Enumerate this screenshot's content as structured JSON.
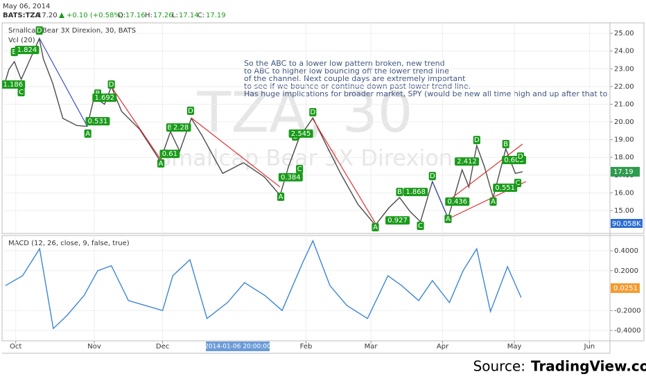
{
  "header": {
    "date": "May 06, 2014",
    "symbol": "BATS:TZA",
    "last": "17.20",
    "change": "+0.10 (+0.58%)",
    "ohlc": [
      {
        "label": "O:",
        "value": "17.16"
      },
      {
        "label": "H:",
        "value": "17.26"
      },
      {
        "label": "L:",
        "value": "17.14"
      },
      {
        "label": "C:",
        "value": "17.19"
      }
    ]
  },
  "chart_data": [
    {
      "type": "line",
      "title": "Smallcap Bear 3X Direxion, 30, BATS",
      "subtitle": "Vol (20)",
      "watermark": "TZA, 30",
      "watermark_name": "Smallcap Bear 3X Direxion",
      "x": [
        -3.5,
        -2,
        -0.4,
        1.6,
        4.7,
        6.9,
        8.1,
        10.8,
        13.8,
        17.9,
        20.9,
        23,
        26,
        28,
        31,
        36.2,
        42.3,
        45.3,
        48,
        51.4,
        54.5,
        60.6,
        66.7,
        72.8,
        77.4,
        79.9,
        82.9,
        87,
        91,
        95.1,
        100.2,
        105.3,
        109.3,
        112.4,
        115.4,
        118.5,
        122,
        126.6,
        130.7,
        132.7,
        135,
        137.2,
        139.8,
        143.5,
        146.3,
        148.4
      ],
      "values": [
        22.0,
        22.97,
        23.4,
        22.4,
        23.75,
        24.7,
        23.55,
        22.2,
        20.2,
        19.8,
        19.75,
        21.4,
        21.0,
        22.0,
        20.6,
        19.6,
        17.8,
        19.45,
        18.35,
        20.2,
        19.25,
        17.1,
        17.7,
        16.9,
        15.86,
        17.5,
        19.06,
        20.23,
        18.67,
        17.1,
        15.35,
        14.18,
        15.16,
        15.74,
        14.96,
        14.37,
        16.64,
        14.57,
        17.3,
        16.33,
        18.67,
        17.5,
        15.74,
        18.48,
        17.1,
        17.19
      ],
      "color": "#4a4a4a",
      "xlim": [
        -4,
        174
      ],
      "ylim": [
        13.71,
        25.59
      ],
      "yticks": [
        {
          "value": 15,
          "label": "15.00"
        },
        {
          "value": 16,
          "label": "16.00"
        },
        {
          "value": 17,
          "label": "17.00"
        },
        {
          "value": 18,
          "label": "18.00"
        },
        {
          "value": 19,
          "label": "19.00"
        },
        {
          "value": 20,
          "label": "20.00"
        },
        {
          "value": 21,
          "label": "21.00"
        },
        {
          "value": 22,
          "label": "22.00"
        },
        {
          "value": 23,
          "label": "23.00"
        },
        {
          "value": 24,
          "label": "24.00"
        },
        {
          "value": 25,
          "label": "25.00"
        }
      ],
      "last_price": 17.19,
      "volume_label": "90.058K",
      "grid": true,
      "note": [
        "So the ABC to a lower low pattern  broken, new trend",
        "to ABC to higher low bouncing off the lower trend line",
        "of the channel.  Next couple days are extremely important",
        "to see if we bounce or continue down past lower trend line.",
        "Has huge implications for broader market, SPY (would be new all time high and up after that to wh"
      ],
      "trend_lines": [
        {
          "x": [
            6.9,
            20.9
          ],
          "y": [
            24.73,
            19.77
          ],
          "color": "#3b4fc4"
        },
        {
          "x": [
            28.0,
            42.7
          ],
          "y": [
            21.99,
            17.81
          ],
          "color": "#e03030"
        },
        {
          "x": [
            51.4,
            77.4
          ],
          "y": [
            20.23,
            16.33
          ],
          "color": "#e03030"
        },
        {
          "x": [
            87.0,
            105.3
          ],
          "y": [
            20.16,
            14.3
          ],
          "color": "#e03030"
        },
        {
          "x": [
            122.0,
            126.6
          ],
          "y": [
            16.64,
            14.57
          ],
          "color": "#3b4fc4"
        },
        {
          "x": [
            126.6,
            148.4
          ],
          "y": [
            15.55,
            18.75
          ],
          "color": "#e03030"
        },
        {
          "x": [
            126.6,
            149.4
          ],
          "y": [
            14.53,
            16.64
          ],
          "color": "#e03030"
        }
      ],
      "pattern_color": "#1a9b1a",
      "pattern_labels": [
        {
          "text": "D",
          "x": 6.9,
          "y": 25.16
        },
        {
          "text": "B",
          "x": -0.4,
          "y": 23.95
        },
        {
          "text": "1.824",
          "x": 3.3,
          "y": 24.06
        },
        {
          "text": "1.186",
          "x": -0.8,
          "y": 22.11
        },
        {
          "text": "C",
          "x": 1.6,
          "y": 21.68
        },
        {
          "text": "B",
          "x": 24.0,
          "y": 21.6
        },
        {
          "text": "1.692",
          "x": 26.0,
          "y": 21.37
        },
        {
          "text": "D",
          "x": 28.0,
          "y": 22.11
        },
        {
          "text": "0.531",
          "x": 24.0,
          "y": 20.04
        },
        {
          "text": "A",
          "x": 21.1,
          "y": 19.34
        },
        {
          "text": "B",
          "x": 45.1,
          "y": 19.69
        },
        {
          "text": "2.28",
          "x": 48.4,
          "y": 19.69
        },
        {
          "text": "0.61",
          "x": 45.1,
          "y": 18.2
        },
        {
          "text": "A",
          "x": 42.5,
          "y": 17.66
        },
        {
          "text": "D",
          "x": 51.2,
          "y": 20.63
        },
        {
          "text": "B",
          "x": 81.9,
          "y": 19.18
        },
        {
          "text": "2.545",
          "x": 83.5,
          "y": 19.34
        },
        {
          "text": "C",
          "x": 83.1,
          "y": 17.34
        },
        {
          "text": "0.384",
          "x": 80.5,
          "y": 16.88
        },
        {
          "text": "D",
          "x": 87.0,
          "y": 20.55
        },
        {
          "text": "A",
          "x": 77.6,
          "y": 15.78
        },
        {
          "text": "A",
          "x": 105.3,
          "y": 14.06
        },
        {
          "text": "0.927",
          "x": 111.8,
          "y": 14.45
        },
        {
          "text": "C",
          "x": 118.5,
          "y": 14.14
        },
        {
          "text": "B",
          "x": 112.4,
          "y": 16.05
        },
        {
          "text": "1.868",
          "x": 117.1,
          "y": 16.05
        },
        {
          "text": "D",
          "x": 122.0,
          "y": 16.95
        },
        {
          "text": "0.436",
          "x": 129.3,
          "y": 15.51
        },
        {
          "text": "A",
          "x": 126.6,
          "y": 14.53
        },
        {
          "text": "2.412",
          "x": 132.1,
          "y": 17.77
        },
        {
          "text": "D",
          "x": 135.0,
          "y": 18.98
        },
        {
          "text": "B",
          "x": 143.5,
          "y": 18.75
        },
        {
          "text": "0.605",
          "x": 145.9,
          "y": 17.85
        },
        {
          "text": "D",
          "x": 147.8,
          "y": 18.05
        },
        {
          "text": "C",
          "x": 147.0,
          "y": 16.56
        },
        {
          "text": "0.551",
          "x": 143.3,
          "y": 16.29
        },
        {
          "text": "A",
          "x": 139.8,
          "y": 15.51
        }
      ]
    },
    {
      "type": "line",
      "title": "MACD (12, 26, close, 9, false, true)",
      "x": [
        -3,
        2,
        7,
        11,
        15,
        20,
        24,
        28,
        33,
        38,
        43,
        46,
        51,
        56,
        62,
        67,
        73,
        78,
        84,
        87,
        92,
        97,
        103,
        109,
        113,
        118,
        122,
        127,
        131,
        135,
        139,
        144,
        148
      ],
      "values": [
        0.05,
        0.15,
        0.42,
        -0.38,
        -0.25,
        -0.05,
        0.2,
        0.25,
        -0.1,
        -0.15,
        -0.2,
        0.15,
        0.31,
        -0.28,
        -0.12,
        0.08,
        -0.05,
        -0.2,
        0.28,
        0.5,
        0.05,
        -0.15,
        -0.28,
        0.15,
        0.05,
        -0.1,
        0.1,
        -0.12,
        0.2,
        0.42,
        -0.21,
        0.24,
        -0.07
      ],
      "color": "#3a86d4",
      "xlim": [
        -4,
        174
      ],
      "ylim": [
        -0.504,
        0.553
      ],
      "yticks": [
        {
          "value": 0.4,
          "label": "0.4000"
        },
        {
          "value": 0.2,
          "label": "0.2000"
        },
        {
          "value": -0.2,
          "label": "-0.2000"
        },
        {
          "value": -0.4,
          "label": "-0.4000"
        }
      ],
      "last_value": 0.0251,
      "last_color": "#f39c32",
      "xticks": [
        {
          "value": 0,
          "label": "Oct"
        },
        {
          "value": 23,
          "label": "Nov"
        },
        {
          "value": 43,
          "label": "Dec"
        },
        {
          "value": 85,
          "label": "Feb"
        },
        {
          "value": 104,
          "label": "Mar"
        },
        {
          "value": 125,
          "label": "Apr"
        },
        {
          "value": 146,
          "label": "May"
        },
        {
          "value": 168,
          "label": "Jun"
        }
      ],
      "cursor": {
        "value": 65,
        "label": "2014-01-06 20:00:00"
      },
      "grid": true
    }
  ],
  "source": {
    "prefix": "Source:",
    "brand": "TradingView.com"
  }
}
